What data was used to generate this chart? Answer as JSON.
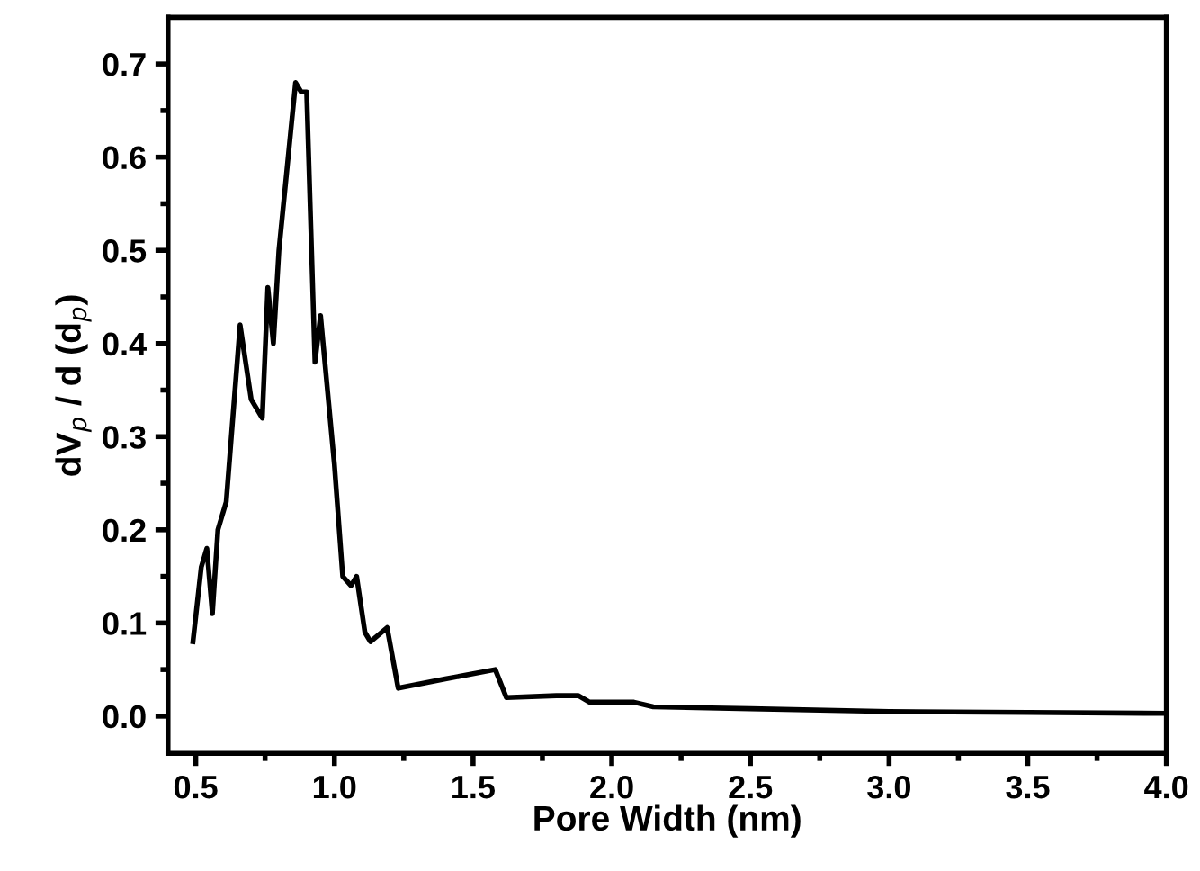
{
  "chart_data": {
    "type": "line",
    "xlabel": "Pore Width (nm)",
    "ylabel": "dV$_{p}$ / d (d$_{p}$)",
    "x": [
      0.49,
      0.52,
      0.54,
      0.56,
      0.58,
      0.61,
      0.66,
      0.7,
      0.74,
      0.76,
      0.78,
      0.8,
      0.86,
      0.88,
      0.9,
      0.93,
      0.95,
      1.0,
      1.03,
      1.06,
      1.08,
      1.11,
      1.13,
      1.19,
      1.23,
      1.4,
      1.58,
      1.62,
      1.8,
      1.88,
      1.92,
      2.08,
      2.15,
      2.5,
      3.0,
      3.5,
      4.0
    ],
    "series": [
      {
        "color": "#000000",
        "values": [
          0.08,
          0.16,
          0.18,
          0.11,
          0.2,
          0.23,
          0.42,
          0.34,
          0.32,
          0.46,
          0.4,
          0.5,
          0.68,
          0.67,
          0.67,
          0.38,
          0.43,
          0.27,
          0.15,
          0.14,
          0.15,
          0.09,
          0.08,
          0.095,
          0.03,
          0.04,
          0.05,
          0.02,
          0.022,
          0.022,
          0.015,
          0.015,
          0.01,
          0.008,
          0.005,
          0.004,
          0.003
        ]
      }
    ],
    "xlim": [
      0.4,
      4.0
    ],
    "ylim": [
      -0.04,
      0.75
    ],
    "xticks": [
      {
        "value": 0.5,
        "label": "0.5"
      },
      {
        "value": 1.0,
        "label": "1.0"
      },
      {
        "value": 1.5,
        "label": "1.5"
      },
      {
        "value": 2.0,
        "label": "2.0"
      },
      {
        "value": 2.5,
        "label": "2.5"
      },
      {
        "value": 3.0,
        "label": "3.0"
      },
      {
        "value": 3.5,
        "label": "3.5"
      },
      {
        "value": 4.0,
        "label": "4.0"
      }
    ],
    "yticks": [
      {
        "value": 0.0,
        "label": "0.0"
      },
      {
        "value": 0.1,
        "label": "0.1"
      },
      {
        "value": 0.2,
        "label": "0.2"
      },
      {
        "value": 0.3,
        "label": "0.3"
      },
      {
        "value": 0.4,
        "label": "0.4"
      },
      {
        "value": 0.5,
        "label": "0.5"
      },
      {
        "value": 0.6,
        "label": "0.6"
      },
      {
        "value": 0.7,
        "label": "0.7"
      }
    ],
    "grid": false,
    "legend": false,
    "marker": "none",
    "line_style": "solid"
  }
}
